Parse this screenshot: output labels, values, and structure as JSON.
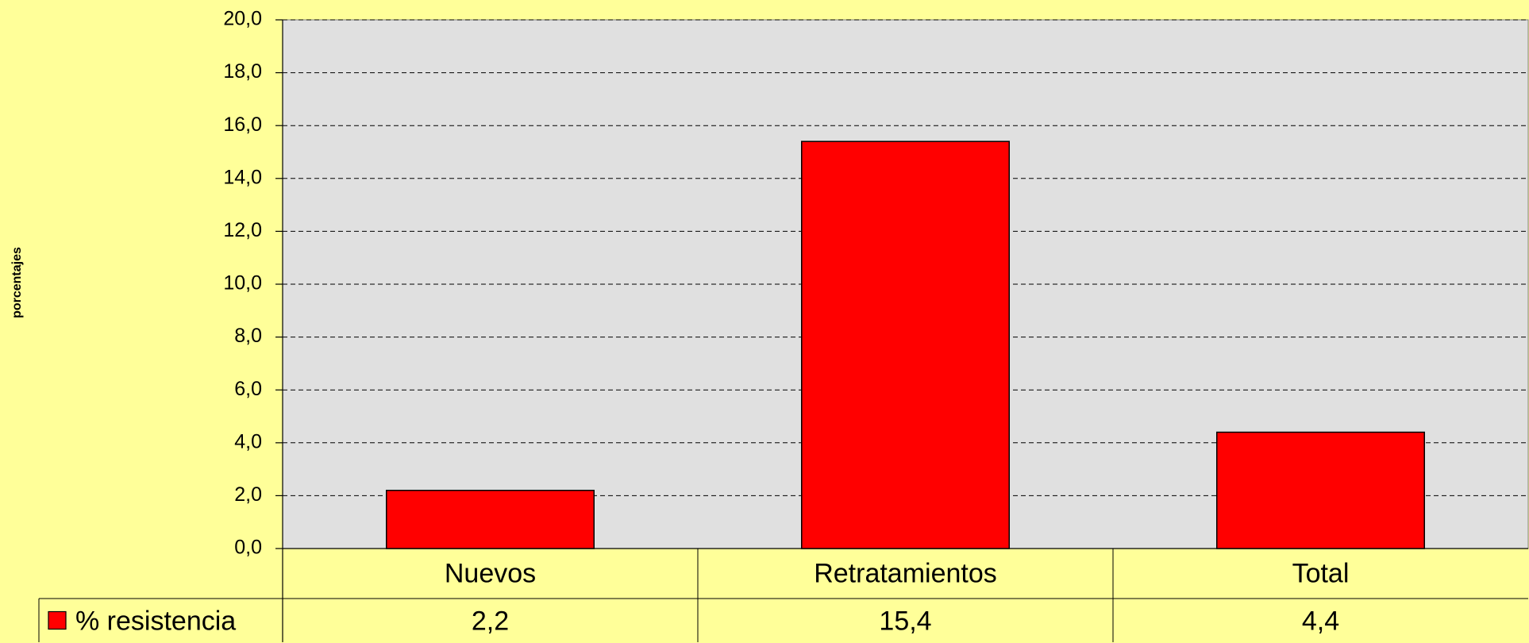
{
  "chart_data": {
    "type": "bar",
    "y_label": "porcentajes",
    "categories": [
      "Nuevos",
      "Retratamientos",
      "Total"
    ],
    "series": [
      {
        "name": "% resistencia",
        "color": "#FF0000",
        "values": [
          2.2,
          15.4,
          4.4
        ],
        "value_labels": [
          "2,2",
          "15,4",
          "4,4"
        ]
      }
    ],
    "ylim": [
      0,
      20
    ],
    "yticks": [
      {
        "value": 0,
        "label": "0,0"
      },
      {
        "value": 2,
        "label": "2,0"
      },
      {
        "value": 4,
        "label": "4,0"
      },
      {
        "value": 6,
        "label": "6,0"
      },
      {
        "value": 8,
        "label": "8,0"
      },
      {
        "value": 10,
        "label": "10,0"
      },
      {
        "value": 12,
        "label": "12,0"
      },
      {
        "value": 14,
        "label": "14,0"
      },
      {
        "value": 16,
        "label": "16,0"
      },
      {
        "value": 18,
        "label": "18,0"
      },
      {
        "value": 20,
        "label": "20,0"
      }
    ],
    "grid": true,
    "data_table": true
  }
}
